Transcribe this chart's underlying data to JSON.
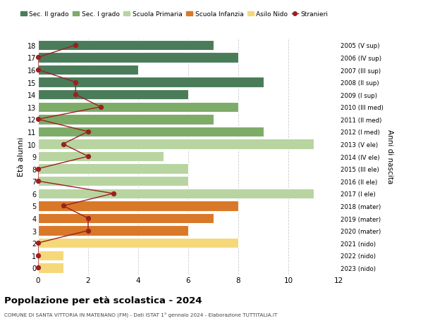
{
  "ages": [
    18,
    17,
    16,
    15,
    14,
    13,
    12,
    11,
    10,
    9,
    8,
    7,
    6,
    5,
    4,
    3,
    2,
    1,
    0
  ],
  "right_labels": [
    "2005 (V sup)",
    "2006 (IV sup)",
    "2007 (III sup)",
    "2008 (II sup)",
    "2009 (I sup)",
    "2010 (III med)",
    "2011 (II med)",
    "2012 (I med)",
    "2013 (V ele)",
    "2014 (IV ele)",
    "2015 (III ele)",
    "2016 (II ele)",
    "2017 (I ele)",
    "2018 (mater)",
    "2019 (mater)",
    "2020 (mater)",
    "2021 (nido)",
    "2022 (nido)",
    "2023 (nido)"
  ],
  "bar_values": [
    7,
    8,
    4,
    9,
    6,
    8,
    7,
    9,
    11,
    5,
    6,
    6,
    11,
    8,
    7,
    6,
    8,
    1,
    1
  ],
  "bar_colors": [
    "#4a7c59",
    "#4a7c59",
    "#4a7c59",
    "#4a7c59",
    "#4a7c59",
    "#7dab68",
    "#7dab68",
    "#7dab68",
    "#b8d4a0",
    "#b8d4a0",
    "#b8d4a0",
    "#b8d4a0",
    "#b8d4a0",
    "#d97828",
    "#d97828",
    "#d97828",
    "#f5d87a",
    "#f5d87a",
    "#f5d87a"
  ],
  "title": "Popolazione per età scolastica - 2024",
  "subtitle": "COMUNE DI SANTA VITTORIA IN MATENANO (FM) - Dati ISTAT 1° gennaio 2024 - Elaborazione TUTTITALIA.IT",
  "ylabel": "Età alunni",
  "right_ylabel": "Anni di nascita",
  "xlim": [
    0,
    12
  ],
  "ylim": [
    -0.55,
    18.55
  ],
  "xticks": [
    0,
    2,
    4,
    6,
    8,
    10,
    12
  ],
  "legend_items": [
    {
      "label": "Sec. II grado",
      "color": "#4a7c59"
    },
    {
      "label": "Sec. I grado",
      "color": "#7dab68"
    },
    {
      "label": "Scuola Primaria",
      "color": "#b8d4a0"
    },
    {
      "label": "Scuola Infanzia",
      "color": "#d97828"
    },
    {
      "label": "Asilo Nido",
      "color": "#f5d87a"
    },
    {
      "label": "Stranieri",
      "color": "#9b2020"
    }
  ],
  "bar_height": 0.82,
  "background_color": "#ffffff",
  "grid_color": "#cccccc",
  "stranieri_color": "#9b2020",
  "stranieri_x": [
    1.5,
    0.0,
    0.0,
    1.5,
    1.5,
    2.5,
    0.0,
    2.0,
    1.0,
    2.0,
    0.0,
    0.0,
    3.0,
    1.0,
    2.0,
    2.0,
    0.0,
    0.0,
    0.0
  ]
}
